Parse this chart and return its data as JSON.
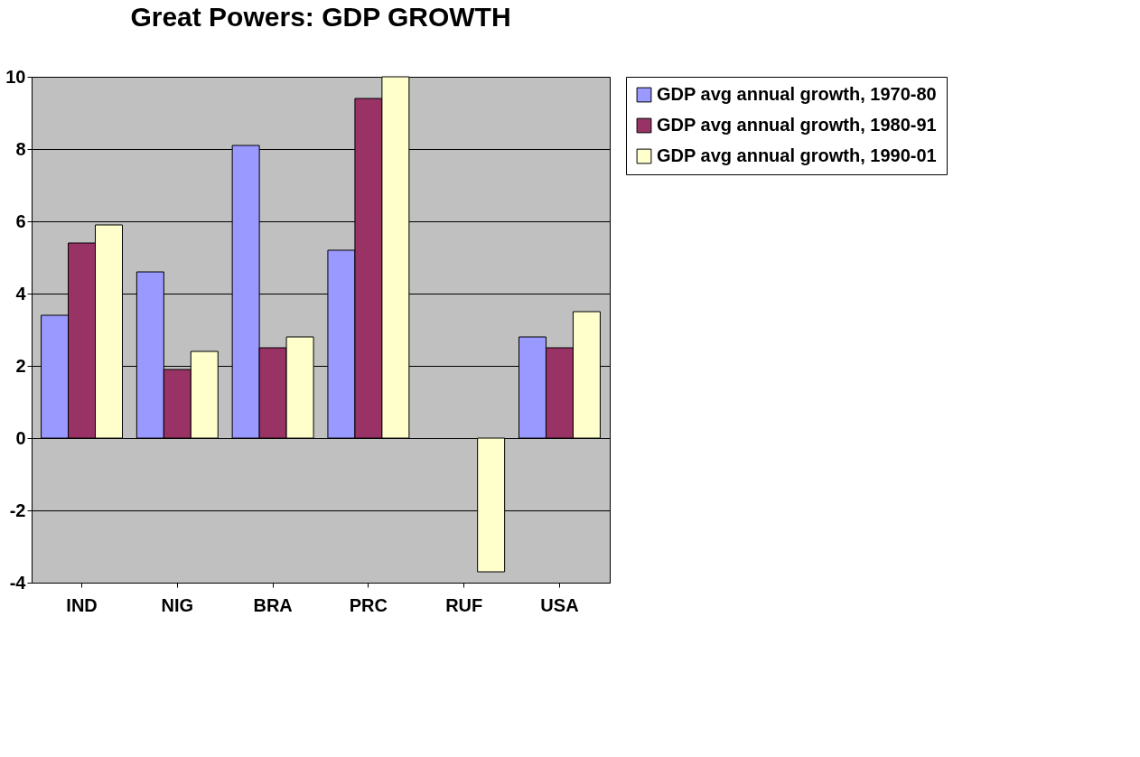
{
  "chart_data": {
    "type": "bar",
    "title": "Great Powers: GDP GROWTH",
    "categories": [
      "IND",
      "NIG",
      "BRA",
      "PRC",
      "RUF",
      "USA"
    ],
    "series": [
      {
        "name": "GDP avg annual growth, 1970-80",
        "color": "#9999ff",
        "values": [
          3.4,
          4.6,
          8.1,
          5.2,
          null,
          2.8
        ]
      },
      {
        "name": "GDP avg annual growth, 1980-91",
        "color": "#993366",
        "values": [
          5.4,
          1.9,
          2.5,
          9.4,
          null,
          2.5
        ]
      },
      {
        "name": "GDP avg annual growth, 1990-01",
        "color": "#ffffcc",
        "values": [
          5.9,
          2.4,
          2.8,
          10.0,
          -3.7,
          3.5
        ]
      }
    ],
    "ylim": [
      -4,
      10
    ],
    "yticks": [
      -4,
      -2,
      0,
      2,
      4,
      6,
      8,
      10
    ],
    "grid": "y",
    "legend": "right"
  }
}
